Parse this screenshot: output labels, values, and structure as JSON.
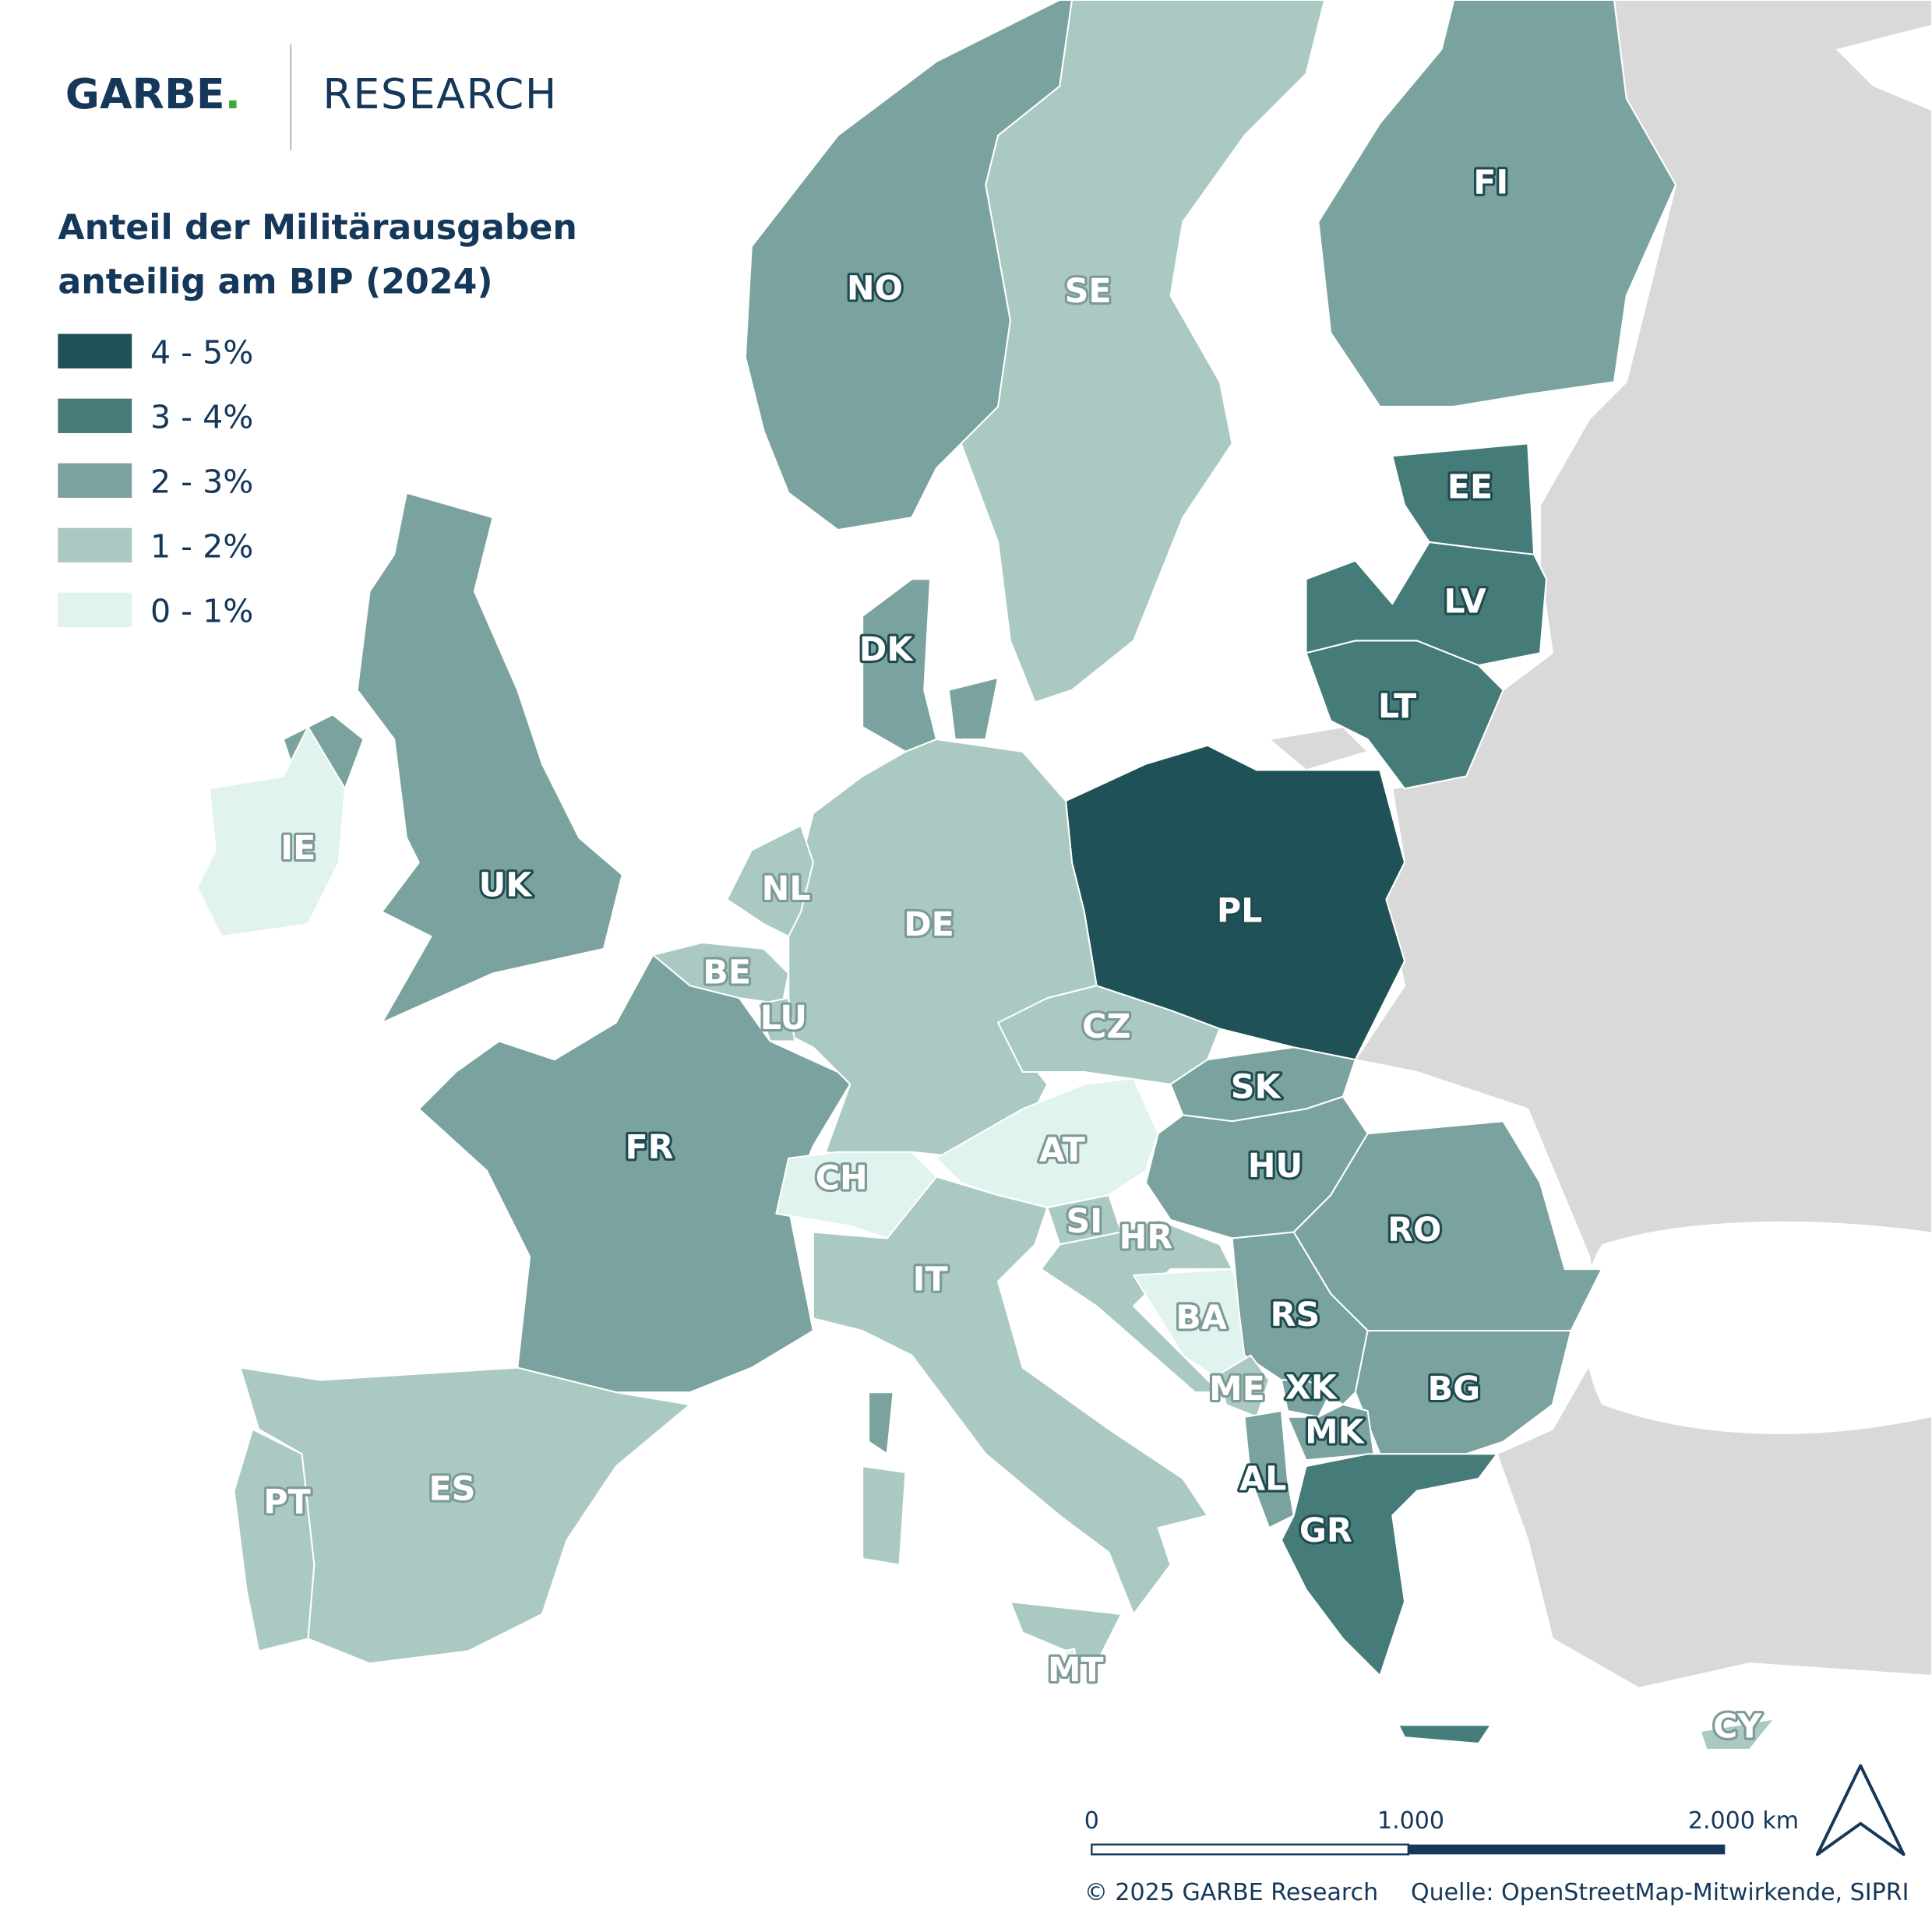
{
  "logo": {
    "brand": "GARBE",
    "dot": ".",
    "division": "RESEARCH"
  },
  "legend": {
    "title": [
      "Anteil der Militärausgaben",
      "anteilig am BIP (2024)"
    ],
    "items": [
      {
        "label": "4 - 5%",
        "color": "#1e5257"
      },
      {
        "label": "3 - 4%",
        "color": "#457b79"
      },
      {
        "label": "2 - 3%",
        "color": "#7aa29e"
      },
      {
        "label": "1 - 2%",
        "color": "#abc9c3"
      },
      {
        "label": "0 - 1%",
        "color": "#e0f3ee"
      }
    ]
  },
  "countries": [
    {
      "code": "NO",
      "color": "#7aa29e"
    },
    {
      "code": "SE",
      "color": "#abc9c3"
    },
    {
      "code": "FI",
      "color": "#7aa29e"
    },
    {
      "code": "EE",
      "color": "#457b79"
    },
    {
      "code": "LV",
      "color": "#457b79"
    },
    {
      "code": "LT",
      "color": "#457b79"
    },
    {
      "code": "PL",
      "color": "#1e5257"
    },
    {
      "code": "DK",
      "color": "#7aa29e"
    },
    {
      "code": "DE",
      "color": "#abc9c3"
    },
    {
      "code": "NL",
      "color": "#abc9c3"
    },
    {
      "code": "BE",
      "color": "#abc9c3"
    },
    {
      "code": "LU",
      "color": "#abc9c3"
    },
    {
      "code": "UK",
      "color": "#7aa29e"
    },
    {
      "code": "IE",
      "color": "#e0f3ee"
    },
    {
      "code": "FR",
      "color": "#7aa29e"
    },
    {
      "code": "CH",
      "color": "#e0f3ee"
    },
    {
      "code": "AT",
      "color": "#e0f3ee"
    },
    {
      "code": "IT",
      "color": "#abc9c3"
    },
    {
      "code": "SI",
      "color": "#abc9c3"
    },
    {
      "code": "HR",
      "color": "#abc9c3"
    },
    {
      "code": "BA",
      "color": "#e0f3ee"
    },
    {
      "code": "CZ",
      "color": "#abc9c3"
    },
    {
      "code": "SK",
      "color": "#7aa29e"
    },
    {
      "code": "HU",
      "color": "#7aa29e"
    },
    {
      "code": "RO",
      "color": "#7aa29e"
    },
    {
      "code": "RS",
      "color": "#7aa29e"
    },
    {
      "code": "BG",
      "color": "#7aa29e"
    },
    {
      "code": "ME",
      "color": "#abc9c3"
    },
    {
      "code": "XK",
      "color": "#7aa29e"
    },
    {
      "code": "MK",
      "color": "#7aa29e"
    },
    {
      "code": "AL",
      "color": "#7aa29e"
    },
    {
      "code": "GR",
      "color": "#457b79"
    },
    {
      "code": "ES",
      "color": "#abc9c3"
    },
    {
      "code": "PT",
      "color": "#abc9c3"
    },
    {
      "code": "MT",
      "color": "#e0f3ee"
    },
    {
      "code": "CY",
      "color": "#abc9c3"
    }
  ],
  "scale_bar": {
    "labels": [
      "0",
      "1.000",
      "2.000 km"
    ]
  },
  "footer": {
    "copyright": "© 2025 GARBE Research",
    "source": "Quelle: OpenStreetMap-Mitwirkende, SIPRI"
  }
}
